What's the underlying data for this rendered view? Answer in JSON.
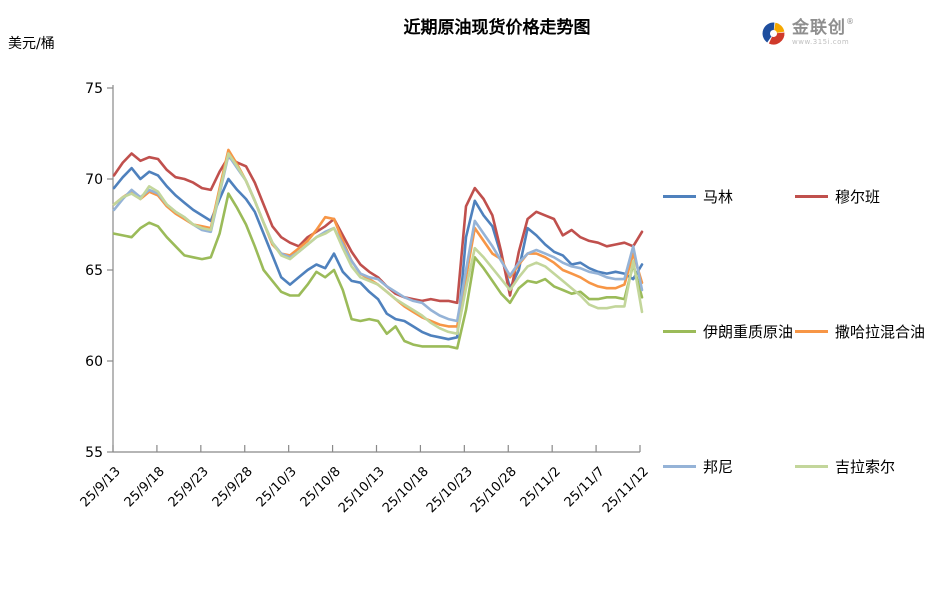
{
  "title": "近期原油现货价格走势图",
  "y_axis_unit": "美元/桶",
  "logo": {
    "name": "金联创",
    "registered_mark": "®",
    "subtext": "www.315i.com",
    "icon_colors": {
      "blue": "#1E4E9E",
      "red": "#D03A2B",
      "yellow": "#F5A800"
    }
  },
  "chart_data": {
    "type": "line",
    "x_labels": [
      "25/9/13",
      "25/9/18",
      "25/9/23",
      "25/9/28",
      "25/10/3",
      "25/10/8",
      "25/10/13",
      "25/10/18",
      "25/10/23",
      "25/10/28",
      "25/11/2",
      "25/11/7",
      "25/11/12"
    ],
    "label_every_n_points": 5,
    "ylim": [
      55,
      75
    ],
    "y_ticks": [
      55,
      60,
      65,
      70,
      75
    ],
    "grid": false,
    "legend_position": "right",
    "axis_color": "#898989",
    "series": [
      {
        "name": "马林",
        "color": "#4F81BD",
        "values": [
          69.5,
          70.1,
          70.6,
          70.0,
          70.4,
          70.2,
          69.6,
          69.1,
          68.7,
          68.3,
          68.0,
          67.7,
          68.9,
          70.0,
          69.4,
          68.9,
          68.2,
          67.0,
          65.8,
          64.6,
          64.2,
          64.6,
          65.0,
          65.3,
          65.1,
          65.9,
          64.9,
          64.4,
          64.3,
          63.8,
          63.4,
          62.6,
          62.3,
          62.2,
          61.9,
          61.6,
          61.4,
          61.3,
          61.2,
          61.3,
          66.8,
          68.8,
          68.0,
          67.4,
          65.8,
          64.0,
          65.0,
          67.3,
          66.9,
          66.4,
          66.0,
          65.8,
          65.3,
          65.4,
          65.1,
          64.9,
          64.8,
          64.9,
          64.8,
          64.5,
          65.3
        ]
      },
      {
        "name": "穆尔班",
        "color": "#C0504D",
        "values": [
          70.2,
          70.9,
          71.4,
          71.0,
          71.2,
          71.1,
          70.5,
          70.1,
          70.0,
          69.8,
          69.5,
          69.4,
          70.4,
          71.2,
          70.9,
          70.7,
          69.8,
          68.6,
          67.4,
          66.8,
          66.5,
          66.3,
          66.8,
          67.1,
          67.4,
          67.8,
          66.9,
          66.0,
          65.3,
          64.9,
          64.6,
          64.1,
          63.7,
          63.5,
          63.4,
          63.3,
          63.4,
          63.3,
          63.3,
          63.2,
          68.5,
          69.5,
          68.9,
          68.0,
          66.0,
          63.6,
          66.0,
          67.8,
          68.2,
          68.0,
          67.8,
          66.9,
          67.2,
          66.8,
          66.6,
          66.5,
          66.3,
          66.4,
          66.5,
          66.3,
          67.1
        ]
      },
      {
        "name": "伊朗重质原油",
        "color": "#9BBB59",
        "values": [
          67.0,
          66.9,
          66.8,
          67.3,
          67.6,
          67.4,
          66.8,
          66.3,
          65.8,
          65.7,
          65.6,
          65.7,
          67.0,
          69.2,
          68.4,
          67.5,
          66.3,
          65.0,
          64.4,
          63.8,
          63.6,
          63.6,
          64.2,
          64.9,
          64.6,
          65.0,
          63.9,
          62.3,
          62.2,
          62.3,
          62.2,
          61.5,
          61.9,
          61.1,
          60.9,
          60.8,
          60.8,
          60.8,
          60.8,
          60.7,
          62.8,
          65.7,
          65.1,
          64.4,
          63.7,
          63.2,
          64.0,
          64.4,
          64.3,
          64.5,
          64.1,
          63.9,
          63.7,
          63.8,
          63.4,
          63.4,
          63.5,
          63.5,
          63.4,
          65.3,
          63.5
        ]
      },
      {
        "name": "撒哈拉混合油",
        "color": "#F79646",
        "values": [
          68.6,
          69.0,
          69.3,
          68.9,
          69.3,
          69.1,
          68.5,
          68.1,
          67.8,
          67.5,
          67.4,
          67.3,
          69.5,
          71.6,
          70.8,
          69.9,
          68.8,
          67.6,
          66.4,
          65.9,
          65.8,
          66.2,
          66.6,
          67.2,
          67.9,
          67.8,
          66.6,
          65.5,
          64.8,
          64.5,
          64.2,
          63.8,
          63.4,
          63.0,
          62.7,
          62.4,
          62.2,
          62.0,
          61.9,
          61.9,
          64.6,
          67.3,
          66.6,
          65.9,
          65.6,
          64.6,
          65.3,
          65.9,
          65.9,
          65.7,
          65.4,
          65.0,
          64.8,
          64.6,
          64.3,
          64.1,
          64.0,
          64.0,
          64.2,
          65.9,
          64.3
        ]
      },
      {
        "name": "邦尼",
        "color": "#95B3D7",
        "values": [
          68.3,
          68.9,
          69.4,
          69.0,
          69.4,
          69.2,
          68.6,
          68.2,
          67.9,
          67.5,
          67.2,
          67.1,
          69.2,
          71.3,
          70.6,
          69.9,
          68.8,
          67.6,
          66.5,
          65.9,
          65.7,
          66.0,
          66.4,
          66.8,
          67.1,
          67.3,
          66.4,
          65.5,
          64.8,
          64.6,
          64.5,
          64.1,
          63.8,
          63.5,
          63.3,
          63.2,
          62.8,
          62.5,
          62.3,
          62.2,
          65.0,
          67.7,
          67.0,
          66.3,
          65.5,
          64.7,
          65.4,
          65.9,
          66.1,
          65.9,
          65.7,
          65.4,
          65.2,
          65.1,
          64.9,
          64.8,
          64.6,
          64.5,
          64.5,
          66.3,
          63.9
        ]
      },
      {
        "name": "吉拉索尔",
        "color": "#C3D69B",
        "values": [
          68.6,
          69.0,
          69.2,
          68.9,
          69.6,
          69.3,
          68.6,
          68.2,
          67.9,
          67.5,
          67.3,
          67.2,
          69.3,
          71.4,
          70.7,
          69.9,
          68.8,
          67.6,
          66.5,
          65.8,
          65.6,
          66.0,
          66.4,
          66.8,
          67.0,
          67.3,
          66.2,
          65.2,
          64.6,
          64.4,
          64.2,
          63.8,
          63.4,
          63.1,
          62.8,
          62.5,
          62.1,
          61.8,
          61.6,
          61.5,
          64.0,
          66.2,
          65.7,
          65.1,
          64.5,
          63.9,
          64.6,
          65.2,
          65.4,
          65.2,
          64.8,
          64.4,
          64.0,
          63.6,
          63.1,
          62.9,
          62.9,
          63.0,
          63.0,
          65.5,
          62.7
        ]
      }
    ]
  },
  "legend_layout": {
    "rows": [
      [
        0,
        1
      ],
      [
        2,
        3
      ],
      [
        4,
        5
      ]
    ],
    "row_tops": [
      186,
      321,
      456
    ],
    "col_lefts": [
      663,
      795
    ]
  }
}
